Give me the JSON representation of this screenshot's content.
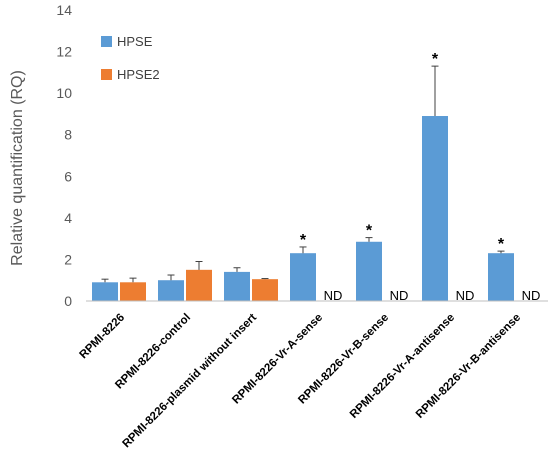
{
  "chart_data": {
    "type": "bar",
    "ylabel": "Relative quantification (RQ)",
    "ylim": [
      0,
      14
    ],
    "yticks": [
      0,
      2,
      4,
      6,
      8,
      10,
      12,
      14
    ],
    "grid": false,
    "legend_position": "top-left",
    "categories": [
      "RPMI-8226",
      "RPMI-8226-control",
      "RPMI-8226-plasmid without insert",
      "RPMI-8226-Vr-A-sense",
      "RPMI-8226-Vr-B-sense",
      "RPMI-8226-Vr-A-antisense",
      "RPMI-8226-Vr-B-antisense"
    ],
    "series": [
      {
        "name": "HPSE",
        "color": "#5b9bd5",
        "values": [
          0.9,
          1.0,
          1.4,
          2.3,
          2.85,
          8.9,
          2.3
        ],
        "error": [
          0.15,
          0.25,
          0.2,
          0.3,
          0.2,
          2.4,
          0.1
        ]
      },
      {
        "name": "HPSE2",
        "color": "#ed7d31",
        "values": [
          0.9,
          1.5,
          1.05,
          null,
          null,
          null,
          null
        ],
        "error": [
          0.2,
          0.4,
          0.03,
          null,
          null,
          null,
          null
        ]
      }
    ],
    "annotations": {
      "significance": [
        "",
        "",
        "",
        "*",
        "*",
        "*",
        "*"
      ],
      "not_detected": [
        "",
        "",
        "",
        "ND",
        "ND",
        "ND",
        "ND"
      ]
    }
  }
}
